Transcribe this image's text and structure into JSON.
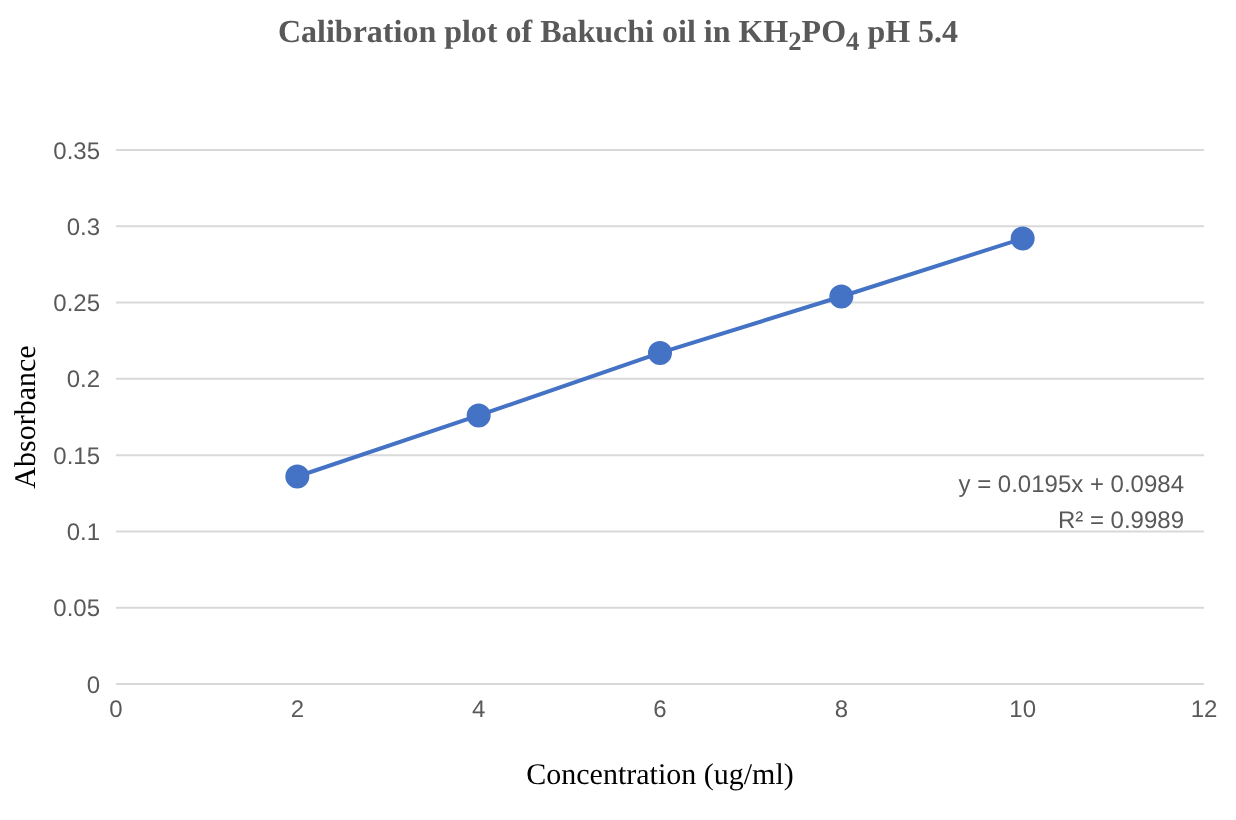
{
  "chart_data": {
    "type": "line",
    "title": "Calibration plot of Bakuchi oil in KH$_{2}$PO$_{4}$ pH 5.4",
    "xlabel": "Concentration (ug/ml)",
    "ylabel": "Absorbance",
    "x": [
      2,
      4,
      6,
      8,
      10
    ],
    "series": [
      {
        "color": "#4472c4",
        "values": [
          0.136,
          0.176,
          0.217,
          0.254,
          0.292
        ]
      }
    ],
    "xlim": [
      0,
      12
    ],
    "xticks": [
      0,
      2,
      4,
      6,
      8,
      10,
      12
    ],
    "ylim": [
      0,
      0.35
    ],
    "yticks": [
      0,
      0.05,
      0.1,
      0.15,
      0.2,
      0.25,
      0.3,
      0.35
    ],
    "grid": "y",
    "marker": "circle",
    "line_style": "solid",
    "annotations": [
      "y = 0.0195x + 0.0984",
      "R² = 0.9989"
    ]
  }
}
